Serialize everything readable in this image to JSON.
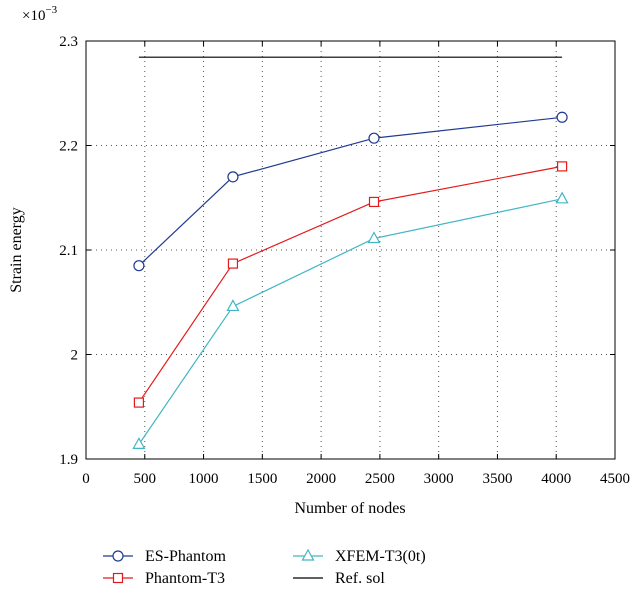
{
  "chart_data": {
    "type": "line",
    "title": "",
    "xlabel": "Number of nodes",
    "ylabel": "Strain energy",
    "y_multiplier_label": "×10",
    "y_multiplier_exponent": "−3",
    "xlim": [
      0,
      4500
    ],
    "ylim": [
      1.9,
      2.3
    ],
    "xticks": [
      0,
      500,
      1000,
      1500,
      2000,
      2500,
      3000,
      3500,
      4000,
      4500
    ],
    "yticks": [
      1.9,
      2,
      2.1,
      2.2,
      2.3
    ],
    "xtick_labels": [
      "0",
      "500",
      "1000",
      "1500",
      "2000",
      "2500",
      "3000",
      "3500",
      "4000",
      "4500"
    ],
    "ytick_labels": [
      "1.9",
      "2",
      "2.1",
      "2.2",
      "2.3"
    ],
    "grid": true,
    "legend_position": "bottom",
    "series": [
      {
        "name": "ES-Phantom",
        "color": "#1f3a93",
        "marker": "circle",
        "x": [
          450,
          1250,
          2450,
          4050
        ],
        "y": [
          2.085,
          2.17,
          2.207,
          2.227
        ]
      },
      {
        "name": "Phantom-T3",
        "color": "#e31a1c",
        "marker": "square",
        "x": [
          450,
          1250,
          2450,
          4050
        ],
        "y": [
          1.954,
          2.087,
          2.146,
          2.18
        ]
      },
      {
        "name": "XFEM-T3(0t)",
        "color": "#41b6c4",
        "marker": "triangle",
        "x": [
          450,
          1250,
          2450,
          4050
        ],
        "y": [
          1.914,
          2.046,
          2.111,
          2.149
        ]
      },
      {
        "name": "Ref. sol",
        "color": "#000000",
        "marker": "none",
        "x": [
          450,
          4050
        ],
        "y": [
          2.2845,
          2.2845
        ]
      }
    ]
  }
}
